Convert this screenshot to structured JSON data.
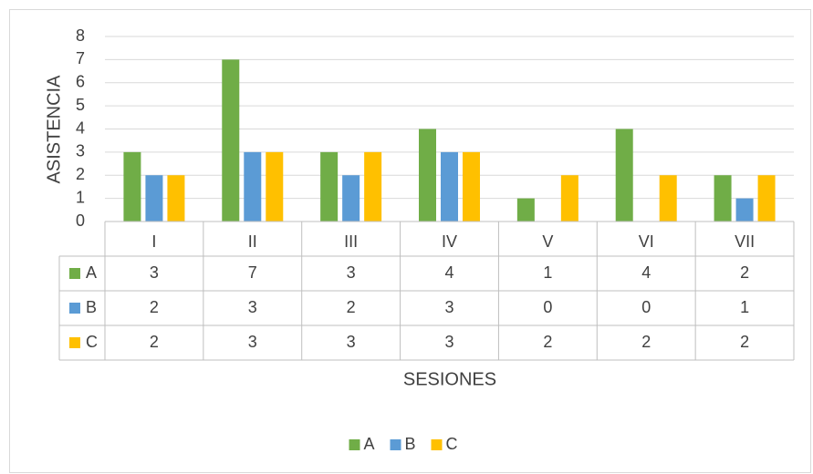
{
  "chart_data": {
    "type": "bar",
    "y_label": "ASISTENCIA",
    "x_label": "SESIONES",
    "categories": [
      "I",
      "II",
      "III",
      "IV",
      "V",
      "VI",
      "VII"
    ],
    "series": [
      {
        "name": "A",
        "color": "#70ad47",
        "values": [
          3,
          7,
          3,
          4,
          1,
          4,
          2
        ]
      },
      {
        "name": "B",
        "color": "#5b9bd5",
        "values": [
          2,
          3,
          2,
          3,
          0,
          0,
          1
        ]
      },
      {
        "name": "C",
        "color": "#ffc000",
        "values": [
          2,
          3,
          3,
          3,
          2,
          2,
          2
        ]
      }
    ],
    "ylim": [
      0,
      8
    ],
    "yticks": [
      0,
      1,
      2,
      3,
      4,
      5,
      6,
      7,
      8
    ],
    "grid": true,
    "legend": "bottom",
    "data_table": true
  }
}
